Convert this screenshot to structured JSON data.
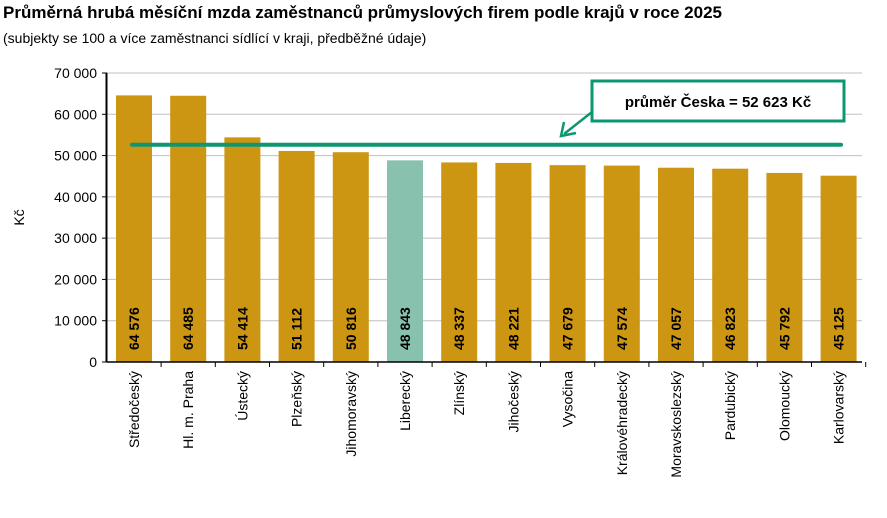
{
  "chart_data": {
    "type": "bar",
    "title": "Průměrná hrubá měsíční mzda zaměstnanců průmyslových firem podle krajů v roce 2025",
    "subtitle": "(subjekty se 100 a více zaměstnanci sídlící v kraji, předběžné údaje)",
    "xlabel": "",
    "ylabel": "Kč",
    "ylim": [
      0,
      70000
    ],
    "yticks": [
      0,
      10000,
      20000,
      30000,
      40000,
      50000,
      60000,
      70000
    ],
    "ytick_labels": [
      "0",
      "10 000",
      "20 000",
      "30 000",
      "40 000",
      "50 000",
      "60 000",
      "70 000"
    ],
    "grid": true,
    "categories": [
      "Středočeský",
      "Hl. m. Praha",
      "Ústecký",
      "Plzeňský",
      "Jihomoravský",
      "Liberecký",
      "Zlínský",
      "Jihočeský",
      "Vysočina",
      "Královéhradecký",
      "Moravskoslezský",
      "Pardubický",
      "Olomoucký",
      "Karlovarský"
    ],
    "values": [
      64576,
      64485,
      54414,
      51112,
      50816,
      48843,
      48337,
      48221,
      47679,
      47574,
      47057,
      46823,
      45792,
      45125
    ],
    "value_labels": [
      "64 576",
      "64 485",
      "54 414",
      "51 112",
      "50 816",
      "48 843",
      "48 337",
      "48 221",
      "47 679",
      "47 574",
      "47 057",
      "46 823",
      "45 792",
      "45 125"
    ],
    "highlight_index": 5,
    "reference_line": {
      "value": 52623,
      "label": "průměr Česka = 52 623 Kč"
    },
    "colors": {
      "bar": "#CC9512",
      "highlight": "#88C2AE",
      "line": "#0E9670",
      "grid": "#C0C0C0"
    }
  }
}
